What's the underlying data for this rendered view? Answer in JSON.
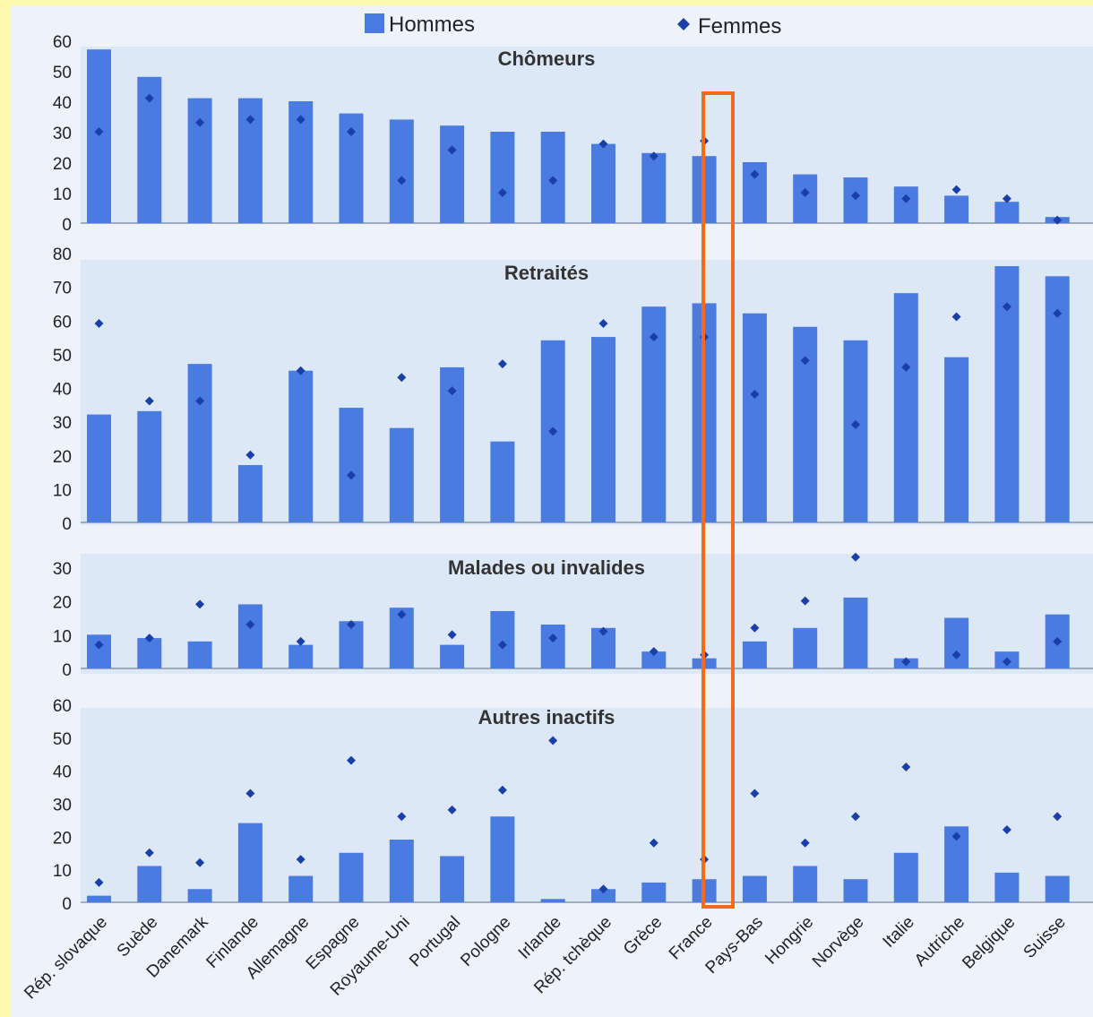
{
  "chart_data": {
    "type": "bar",
    "legend": {
      "position": "top",
      "entries": [
        {
          "name": "Hommes",
          "marker": "bar"
        },
        {
          "name": "Femmes",
          "marker": "diamond"
        }
      ]
    },
    "categories": [
      "Rép. slovaque",
      "Suède",
      "Danemark",
      "Finlande",
      "Allemagne",
      "Espagne",
      "Royaume-Uni",
      "Portugal",
      "Pologne",
      "Irlande",
      "Rép. tchèque",
      "Grèce",
      "France",
      "Pays-Bas",
      "Hongrie",
      "Norvège",
      "Italie",
      "Autriche",
      "Belgique",
      "Suisse"
    ],
    "highlight_category": "France",
    "colors": {
      "hommes": "#4a7be0",
      "femmes": "#1a3fa8",
      "highlight_box": "#f26b1d",
      "panel": "#dde8f7",
      "background": "#fdfab0"
    },
    "grid": false,
    "panels": [
      {
        "title": "Chômeurs",
        "ylim": [
          0,
          60
        ],
        "yticks": [
          0,
          10,
          20,
          30,
          40,
          50,
          60
        ],
        "series": [
          {
            "name": "Hommes",
            "type": "bar",
            "values": [
              57,
              48,
              41,
              41,
              40,
              36,
              34,
              32,
              30,
              30,
              26,
              23,
              22,
              20,
              16,
              15,
              12,
              9,
              7,
              2
            ]
          },
          {
            "name": "Femmes",
            "type": "marker",
            "values": [
              30,
              41,
              33,
              34,
              34,
              30,
              14,
              24,
              10,
              14,
              26,
              22,
              27,
              16,
              10,
              9,
              8,
              11,
              8,
              1
            ]
          }
        ]
      },
      {
        "title": "Retraités",
        "ylim": [
          0,
          80
        ],
        "yticks": [
          0,
          10,
          20,
          30,
          40,
          50,
          60,
          70,
          80
        ],
        "series": [
          {
            "name": "Hommes",
            "type": "bar",
            "values": [
              32,
              33,
              47,
              17,
              45,
              34,
              28,
              46,
              24,
              54,
              55,
              64,
              65,
              62,
              58,
              54,
              68,
              49,
              76,
              73
            ]
          },
          {
            "name": "Femmes",
            "type": "marker",
            "values": [
              59,
              36,
              36,
              20,
              45,
              14,
              43,
              39,
              47,
              27,
              59,
              55,
              55,
              38,
              48,
              29,
              46,
              61,
              64,
              62
            ]
          }
        ]
      },
      {
        "title": "Malades ou invalides",
        "ylim": [
          0,
          30
        ],
        "yticks": [
          0,
          10,
          20,
          30
        ],
        "series": [
          {
            "name": "Hommes",
            "type": "bar",
            "values": [
              10,
              9,
              8,
              19,
              7,
              14,
              18,
              7,
              17,
              13,
              12,
              5,
              3,
              8,
              12,
              21,
              3,
              15,
              5,
              16
            ]
          },
          {
            "name": "Femmes",
            "type": "marker",
            "values": [
              7,
              9,
              19,
              13,
              8,
              13,
              16,
              10,
              7,
              9,
              11,
              5,
              4,
              12,
              20,
              33,
              2,
              4,
              2,
              8
            ]
          }
        ]
      },
      {
        "title": "Autres inactifs",
        "ylim": [
          0,
          60
        ],
        "yticks": [
          0,
          10,
          20,
          30,
          40,
          50,
          60
        ],
        "series": [
          {
            "name": "Hommes",
            "type": "bar",
            "values": [
              2,
              11,
              4,
              24,
              8,
              15,
              19,
              14,
              26,
              1,
              4,
              6,
              7,
              8,
              11,
              7,
              15,
              23,
              9,
              8
            ]
          },
          {
            "name": "Femmes",
            "type": "marker",
            "values": [
              6,
              15,
              12,
              33,
              13,
              43,
              26,
              28,
              34,
              49,
              4,
              18,
              13,
              33,
              18,
              26,
              41,
              20,
              22,
              26
            ]
          }
        ]
      }
    ]
  }
}
